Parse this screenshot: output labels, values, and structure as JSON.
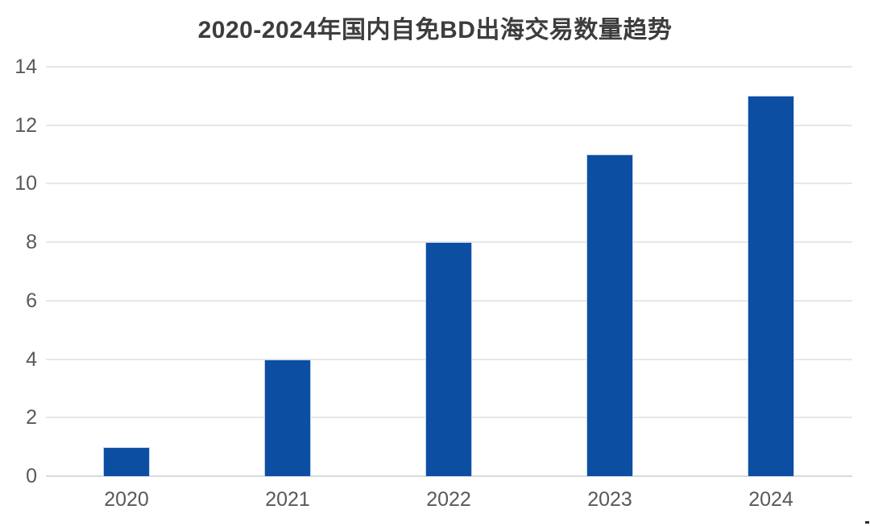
{
  "chart_data": {
    "type": "bar",
    "title": "2020-2024年国内自免BD出海交易数量趋势",
    "categories": [
      "2020",
      "2021",
      "2022",
      "2023",
      "2024"
    ],
    "values": [
      1,
      4,
      8,
      11,
      13
    ],
    "xlabel": "",
    "ylabel": "",
    "ylim": [
      0,
      14
    ],
    "ytick_step": 2,
    "yticks": [
      0,
      2,
      4,
      6,
      8,
      10,
      12,
      14
    ],
    "grid": true,
    "legend": "none",
    "colors": {
      "bar_fill": "#0b4ea2",
      "bar_edge": "#c3d5ea",
      "gridline": "#e7e7e7",
      "axis_baseline": "#d9d9d9",
      "tick_label": "#595959",
      "title": "#3d3d3d",
      "background": "#ffffff"
    }
  }
}
